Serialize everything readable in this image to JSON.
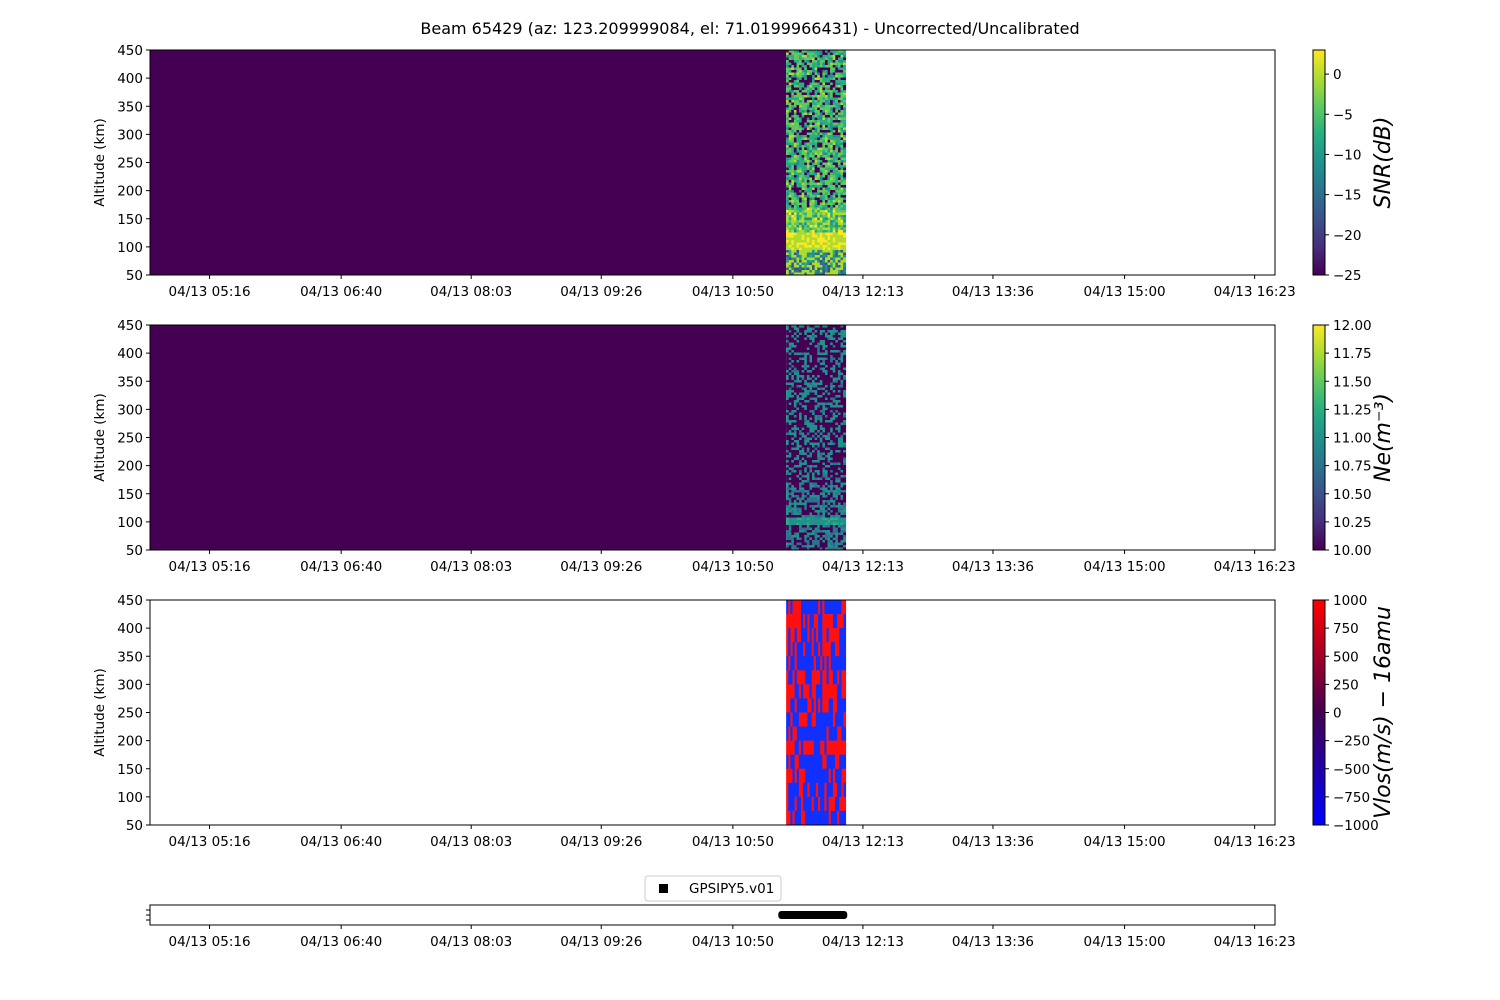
{
  "title": "Beam 65429 (az: 123.209999084, el: 71.0199966431) - Uncorrected/Uncalibrated",
  "x_ticks": [
    "04/13 05:16",
    "04/13 06:40",
    "04/13 08:03",
    "04/13 09:26",
    "04/13 10:50",
    "04/13 12:13",
    "04/13 13:36",
    "04/13 15:00",
    "04/13 16:23"
  ],
  "chart_data": [
    {
      "type": "heatmap",
      "ylabel": "Altitude (km)",
      "ylim": [
        50,
        450
      ],
      "y_ticks": [
        50,
        100,
        150,
        200,
        250,
        300,
        350,
        400,
        450
      ],
      "x_ticks": [
        "04/13 05:16",
        "04/13 06:40",
        "04/13 08:03",
        "04/13 09:26",
        "04/13 10:50",
        "04/13 12:13",
        "04/13 13:36",
        "04/13 15:00",
        "04/13 16:23"
      ],
      "xlim": [
        "04/13 04:38",
        "04/13 16:36"
      ],
      "data_start": "04/13 04:38",
      "data_end": "04/13 12:02",
      "colormap": "viridis",
      "colorbar_label": "SNR(dB)",
      "colorbar_range": [
        -25,
        3
      ],
      "colorbar_ticks": [
        "0",
        "−5",
        "−10",
        "−15",
        "−20",
        "−25"
      ],
      "colorbar_tick_values": [
        0,
        -5,
        -10,
        -15,
        -20,
        -25
      ],
      "background_value": -25
    },
    {
      "type": "heatmap",
      "ylabel": "Altitude (km)",
      "ylim": [
        50,
        450
      ],
      "y_ticks": [
        50,
        100,
        150,
        200,
        250,
        300,
        350,
        400,
        450
      ],
      "x_ticks": [
        "04/13 05:16",
        "04/13 06:40",
        "04/13 08:03",
        "04/13 09:26",
        "04/13 10:50",
        "04/13 12:13",
        "04/13 13:36",
        "04/13 15:00",
        "04/13 16:23"
      ],
      "xlim": [
        "04/13 04:38",
        "04/13 16:36"
      ],
      "data_start": "04/13 04:38",
      "data_end": "04/13 12:02",
      "colormap": "viridis",
      "colorbar_label": "Ne(m⁻³)",
      "colorbar_range": [
        10,
        12
      ],
      "colorbar_ticks": [
        "12.00",
        "11.75",
        "11.50",
        "11.25",
        "11.00",
        "10.75",
        "10.50",
        "10.25",
        "10.00"
      ],
      "colorbar_tick_values": [
        12,
        11.75,
        11.5,
        11.25,
        11,
        10.75,
        10.5,
        10.25,
        10
      ],
      "background_value": 10
    },
    {
      "type": "heatmap",
      "ylabel": "Altitude (km)",
      "ylim": [
        50,
        450
      ],
      "y_ticks": [
        50,
        100,
        150,
        200,
        250,
        300,
        350,
        400,
        450
      ],
      "x_ticks": [
        "04/13 05:16",
        "04/13 06:40",
        "04/13 08:03",
        "04/13 09:26",
        "04/13 10:50",
        "04/13 12:13",
        "04/13 13:36",
        "04/13 15:00",
        "04/13 16:23"
      ],
      "xlim": [
        "04/13 04:38",
        "04/13 16:36"
      ],
      "data_start": "04/13 11:24",
      "data_end": "04/13 12:02",
      "colormap": "bwr",
      "colorbar_label": "Vlos(m/s) − 16amu",
      "colorbar_range": [
        -1000,
        1000
      ],
      "colorbar_ticks": [
        "1000",
        "750",
        "500",
        "250",
        "0",
        "−250",
        "−500",
        "−750",
        "−1000"
      ],
      "colorbar_tick_values": [
        1000,
        750,
        500,
        250,
        0,
        -250,
        -500,
        -750,
        -1000
      ]
    },
    {
      "type": "scatter",
      "x_ticks": [
        "04/13 05:16",
        "04/13 06:40",
        "04/13 08:03",
        "04/13 09:26",
        "04/13 10:50",
        "04/13 12:13",
        "04/13 13:36",
        "04/13 15:00",
        "04/13 16:23"
      ],
      "xlim": [
        "04/13 04:38",
        "04/13 16:36"
      ],
      "series": [
        {
          "name": "GPSIPY5.v01",
          "x_start": "04/13 11:19",
          "x_end": "04/13 12:03",
          "marker": "square",
          "color": "#000000"
        }
      ],
      "legend_position": "top-center"
    }
  ]
}
